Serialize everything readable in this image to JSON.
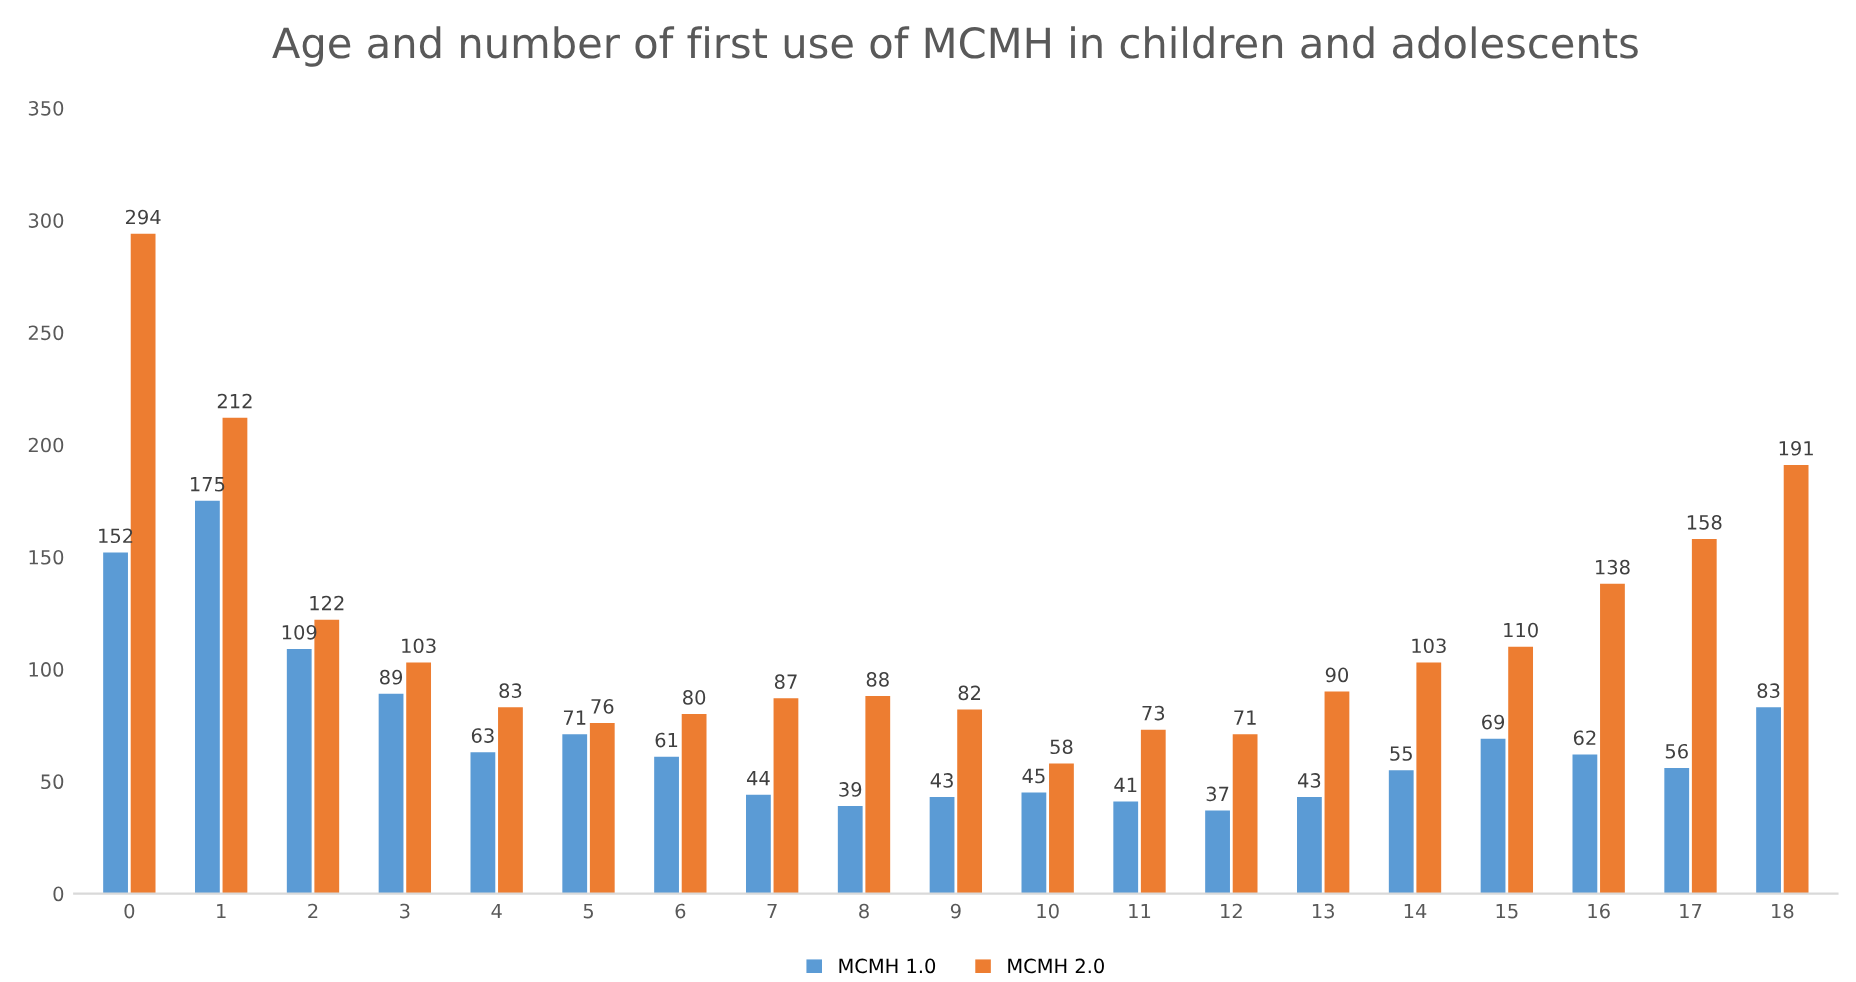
{
  "chart_data": {
    "type": "bar",
    "title": "Age and number of first use of MCMH in children and adolescents",
    "categories": [
      "0",
      "1",
      "2",
      "3",
      "4",
      "5",
      "6",
      "7",
      "8",
      "9",
      "10",
      "11",
      "12",
      "13",
      "14",
      "15",
      "16",
      "17",
      "18"
    ],
    "series": [
      {
        "name": "MCMH 1.0",
        "color": "#5b9bd5",
        "values": [
          152,
          175,
          109,
          89,
          63,
          71,
          61,
          44,
          39,
          43,
          45,
          41,
          37,
          43,
          55,
          69,
          62,
          56,
          83
        ]
      },
      {
        "name": "MCMH 2.0",
        "color": "#ed7d31",
        "values": [
          294,
          212,
          122,
          103,
          83,
          76,
          80,
          87,
          88,
          82,
          58,
          73,
          71,
          90,
          103,
          110,
          138,
          158,
          191
        ]
      }
    ],
    "ylim": [
      0,
      350
    ],
    "yticks": [
      0,
      50,
      100,
      150,
      200,
      250,
      300,
      350
    ],
    "data_labels": true,
    "legend": "bottom",
    "grid": false
  }
}
